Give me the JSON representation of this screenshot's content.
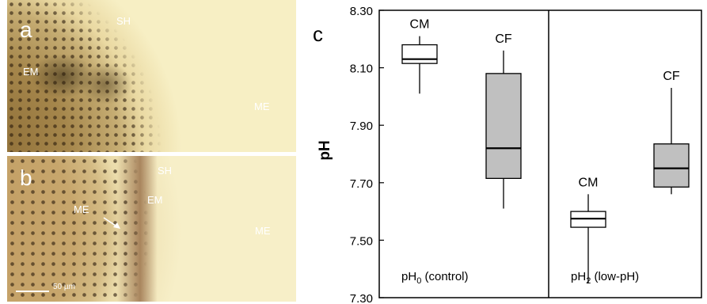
{
  "photo_a": {
    "panel_letter": "a",
    "labels": {
      "sh": "SH",
      "em": "EM",
      "me": "ME"
    }
  },
  "photo_b": {
    "panel_letter": "b",
    "labels": {
      "sh": "SH",
      "em": "EM",
      "me_inner": "ME",
      "me_outer": "ME"
    },
    "scale_bar_label": "50 µm"
  },
  "chart_data": {
    "type": "box",
    "panel_letter": "c",
    "ylabel": "pH",
    "ylim": [
      7.3,
      8.3
    ],
    "yticks": [
      "7.30",
      "7.50",
      "7.70",
      "7.90",
      "8.10",
      "8.30"
    ],
    "groups": [
      {
        "name_prefix": "pH",
        "name_sub": "0",
        "name_suffix": " (control)"
      },
      {
        "name_prefix": "pH",
        "name_sub": "2",
        "name_suffix": " (low-pH)"
      }
    ],
    "boxes": [
      {
        "label": "CM",
        "group": 0,
        "position": 0,
        "fill": "#ffffff",
        "min": 8.01,
        "q1": 8.115,
        "median": 8.13,
        "q3": 8.18,
        "max": 8.21
      },
      {
        "label": "CF",
        "group": 0,
        "position": 1,
        "fill": "#c0c0c0",
        "min": 7.61,
        "q1": 7.715,
        "median": 7.82,
        "q3": 8.08,
        "max": 8.16
      },
      {
        "label": "CM",
        "group": 1,
        "position": 0,
        "fill": "#ffffff",
        "min": 7.35,
        "q1": 7.545,
        "median": 7.575,
        "q3": 7.6,
        "max": 7.66
      },
      {
        "label": "CF",
        "group": 1,
        "position": 1,
        "fill": "#c0c0c0",
        "min": 7.66,
        "q1": 7.685,
        "median": 7.75,
        "q3": 7.835,
        "max": 8.03
      }
    ]
  }
}
